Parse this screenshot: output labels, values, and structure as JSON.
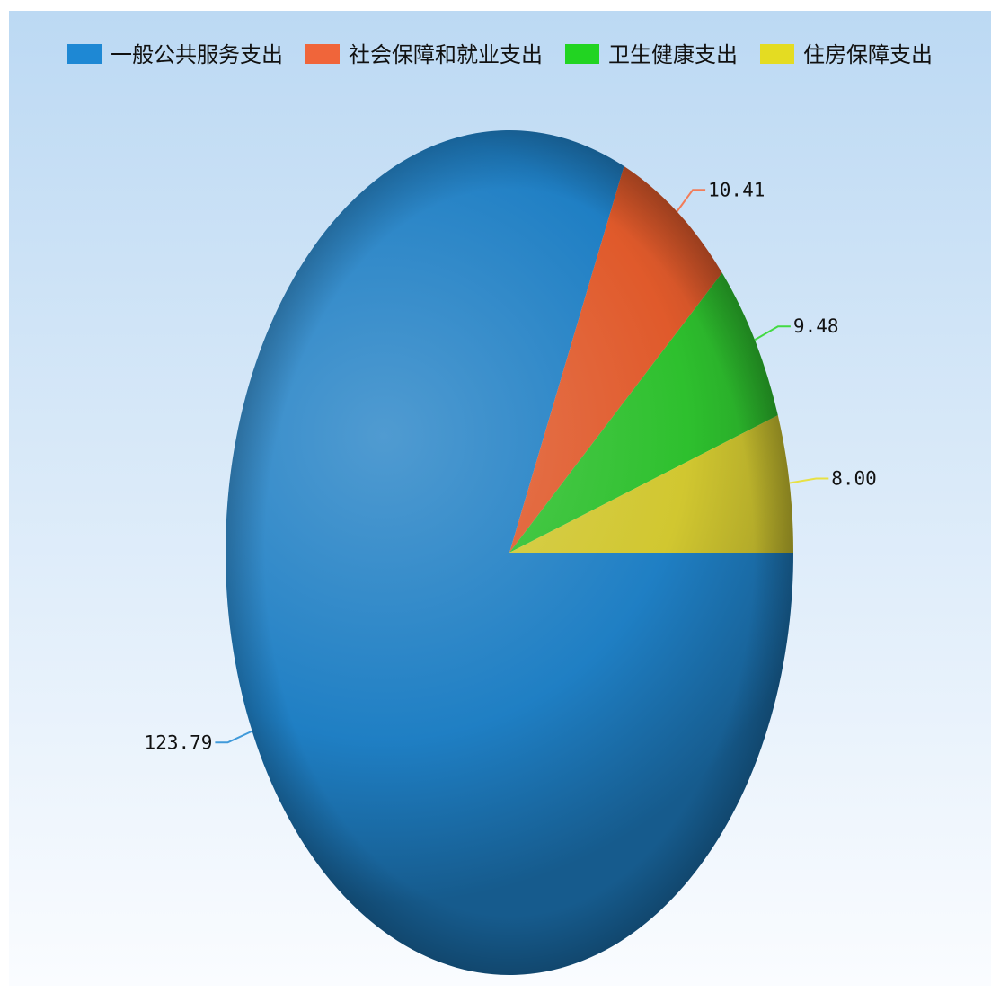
{
  "chart_data": {
    "type": "pie",
    "title": "",
    "legend_position": "top",
    "slices": [
      {
        "label": "一般公共服务支出",
        "value": 123.79,
        "value_label": "123.79",
        "color": "#1f7fc4",
        "legend_color": "#1e88d4"
      },
      {
        "label": "社会保障和就业支出",
        "value": 10.41,
        "value_label": "10.41",
        "color": "#e05a2b",
        "legend_color": "#f0653a"
      },
      {
        "label": "卫生健康支出",
        "value": 9.48,
        "value_label": "9.48",
        "color": "#2ec02e",
        "legend_color": "#22d422"
      },
      {
        "label": "住房保障支出",
        "value": 8.0,
        "value_label": "8.00",
        "color": "#d1c730",
        "legend_color": "#e4dc22"
      }
    ]
  }
}
